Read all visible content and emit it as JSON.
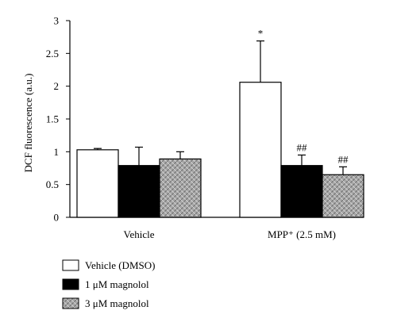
{
  "chart_data": {
    "type": "bar",
    "ylabel": "DCF fluorescence (a.u.)",
    "ylim": [
      0,
      3
    ],
    "yticks": [
      "0",
      "0.5",
      "1",
      "1.5",
      "2",
      "2.5",
      "3"
    ],
    "categories": [
      "Vehicle",
      "MPP⁺ (2.5 mM)"
    ],
    "series": [
      {
        "name": "Vehicle (DMSO)",
        "values": [
          1.03,
          2.06
        ],
        "errors": [
          0.02,
          0.63
        ],
        "annotations": [
          "",
          "*"
        ],
        "fill": "#ffffff"
      },
      {
        "name": "1 μM magnolol",
        "values": [
          0.79,
          0.79
        ],
        "errors": [
          0.28,
          0.16
        ],
        "annotations": [
          "",
          "##"
        ],
        "fill": "#000000"
      },
      {
        "name": "3 μM magnolol",
        "values": [
          0.89,
          0.65
        ],
        "errors": [
          0.11,
          0.12
        ],
        "annotations": [
          "",
          "##"
        ],
        "fill": "#a7a7a7"
      }
    ],
    "grid": false,
    "legend_position": "bottom-left"
  }
}
